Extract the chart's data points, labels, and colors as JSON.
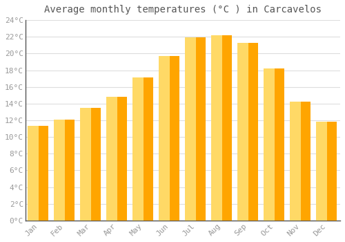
{
  "months": [
    "Jan",
    "Feb",
    "Mar",
    "Apr",
    "May",
    "Jun",
    "Jul",
    "Aug",
    "Sep",
    "Oct",
    "Nov",
    "Dec"
  ],
  "temperatures": [
    11.3,
    12.1,
    13.5,
    14.8,
    17.1,
    19.7,
    21.9,
    22.2,
    21.3,
    18.2,
    14.2,
    11.8
  ],
  "title": "Average monthly temperatures (°C ) in Carcavelos",
  "bar_color_center": "#FFD966",
  "bar_color_edge": "#FFA500",
  "background_color": "#FFFFFF",
  "grid_color": "#DDDDDD",
  "text_color": "#999999",
  "spine_color": "#555555",
  "ylim": [
    0,
    24
  ],
  "ytick_step": 2,
  "title_fontsize": 10,
  "tick_fontsize": 8,
  "font_family": "monospace"
}
